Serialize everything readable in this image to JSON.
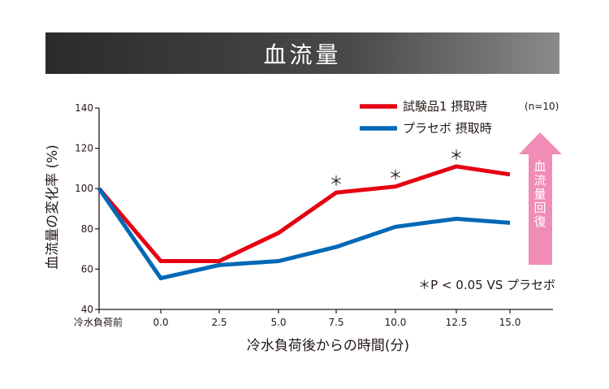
{
  "title": "血流量",
  "chart_data": {
    "type": "line",
    "categories": [
      "冷水負荷前",
      "0.0",
      "2.5",
      "5.0",
      "7.5",
      "10.0",
      "12.5",
      "15.0"
    ],
    "series": [
      {
        "name": "試験品1 摂取時",
        "color": "#e60012",
        "values": [
          100,
          64,
          64,
          78,
          98,
          101,
          111,
          107
        ]
      },
      {
        "name": "プラセボ 摂取時",
        "color": "#0068b7",
        "values": [
          100,
          55.5,
          62,
          64,
          71,
          81,
          85,
          83
        ]
      }
    ],
    "significance_marker": "＊",
    "significance_at": [
      "7.5",
      "10.0",
      "12.5"
    ],
    "xlabel": "冷水負荷後からの時間(分)",
    "ylabel": "血流量の変化率 (%)",
    "ylim": [
      40,
      140
    ],
    "yticks": [
      "40",
      "60",
      "80",
      "100",
      "120",
      "140"
    ],
    "n_label": "(n=10)",
    "stat_note": "＊P < 0.05 VS プラセボ",
    "arrow_label": "血流量回復",
    "arrow_color": "#f08cb6",
    "grid": false,
    "legend_position": "top-right"
  }
}
